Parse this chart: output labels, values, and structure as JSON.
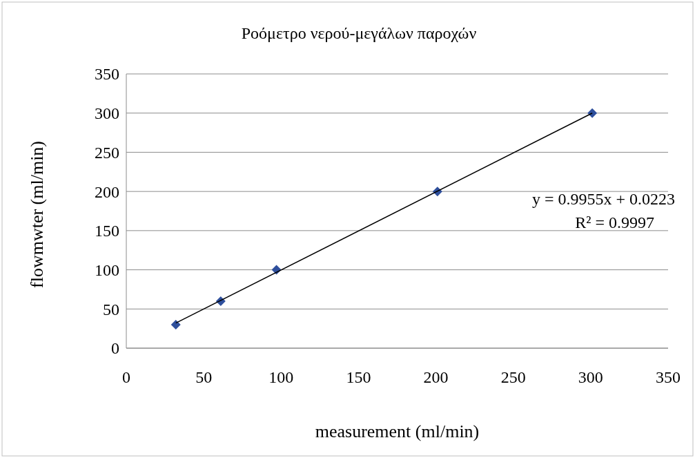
{
  "chart_data": {
    "type": "scatter",
    "title": "Ροόμετρο νερού-μεγάλων παροχών",
    "xlabel": "measurement (ml/min)",
    "ylabel": "flowmwter (ml/min)",
    "series": [
      {
        "color": "#2e4f9c",
        "x": [
          32,
          61,
          97,
          201,
          301
        ],
        "values": [
          30,
          60,
          100,
          200,
          300
        ],
        "marker": "diamond"
      },
      {
        "type": "line",
        "color": "#000000",
        "x": [
          32,
          301
        ],
        "values": [
          32,
          300
        ],
        "marker": "none",
        "line_style": "solid"
      }
    ],
    "xlim": [
      0,
      350
    ],
    "xticks": [
      0,
      50,
      100,
      150,
      200,
      250,
      300,
      350
    ],
    "ylim": [
      0,
      350
    ],
    "yticks": [
      0,
      50,
      100,
      150,
      200,
      250,
      300,
      350
    ],
    "grid": "y",
    "annotations": [
      "y = 0.9955x + 0.0223",
      "R² = 0.9997"
    ]
  }
}
